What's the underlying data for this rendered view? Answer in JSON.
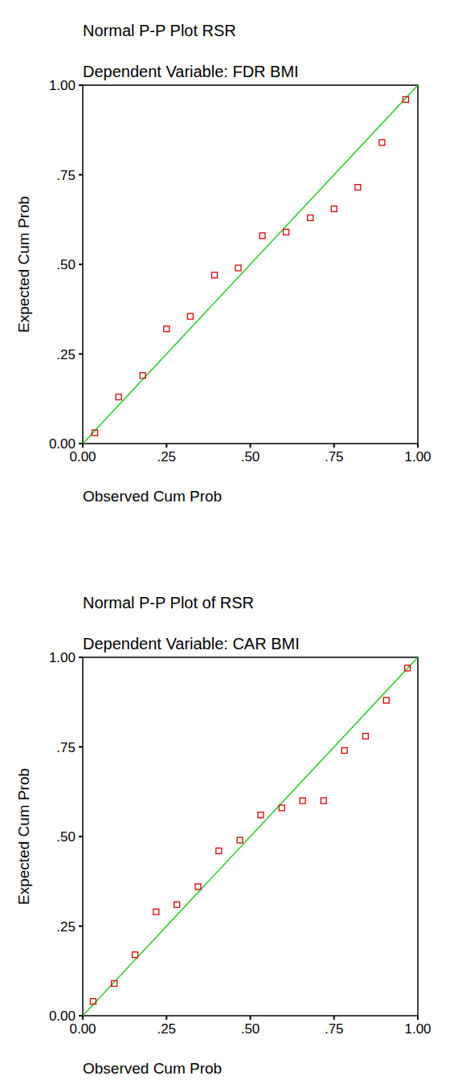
{
  "chart_data": [
    {
      "type": "scatter",
      "title": "Normal P-P Plot RSR",
      "subtitle": "Dependent Variable: FDR BMI",
      "x_label": "Observed Cum Prob",
      "y_label": "Expected Cum Prob",
      "x": [
        0.036,
        0.107,
        0.179,
        0.25,
        0.321,
        0.393,
        0.464,
        0.536,
        0.607,
        0.679,
        0.75,
        0.821,
        0.893,
        0.964
      ],
      "values": [
        0.03,
        0.13,
        0.19,
        0.32,
        0.355,
        0.47,
        0.49,
        0.58,
        0.59,
        0.63,
        0.655,
        0.715,
        0.84,
        0.96
      ],
      "color": "#e00000",
      "marker": "square",
      "xlim": [
        0,
        1
      ],
      "ylim": [
        0,
        1
      ],
      "xticks": [
        {
          "value": 0,
          "label": "0.00"
        },
        {
          "value": 0.25,
          "label": ".25"
        },
        {
          "value": 0.5,
          "label": ".50"
        },
        {
          "value": 0.75,
          "label": ".75"
        },
        {
          "value": 1,
          "label": "1.00"
        }
      ],
      "yticks": [
        {
          "value": 0,
          "label": "0.00"
        },
        {
          "value": 0.25,
          "label": ".25"
        },
        {
          "value": 0.5,
          "label": ".50"
        },
        {
          "value": 0.75,
          "label": ".75"
        },
        {
          "value": 1,
          "label": "1.00"
        }
      ],
      "grid": false
    },
    {
      "type": "scatter",
      "title": "Normal P-P Plot of RSR",
      "subtitle": "Dependent Variable: CAR BMI",
      "x_label": "Observed Cum Prob",
      "y_label": "Expected Cum Prob",
      "x": [
        0.031,
        0.094,
        0.156,
        0.219,
        0.281,
        0.344,
        0.406,
        0.469,
        0.531,
        0.594,
        0.656,
        0.719,
        0.781,
        0.844,
        0.906,
        0.969
      ],
      "values": [
        0.04,
        0.09,
        0.17,
        0.29,
        0.31,
        0.36,
        0.46,
        0.49,
        0.56,
        0.58,
        0.6,
        0.6,
        0.74,
        0.78,
        0.88,
        0.97
      ],
      "color": "#e00000",
      "marker": "square",
      "xlim": [
        0,
        1
      ],
      "ylim": [
        0,
        1
      ],
      "xticks": [
        {
          "value": 0,
          "label": "0.00"
        },
        {
          "value": 0.25,
          "label": ".25"
        },
        {
          "value": 0.5,
          "label": ".50"
        },
        {
          "value": 0.75,
          "label": ".75"
        },
        {
          "value": 1,
          "label": "1.00"
        }
      ],
      "yticks": [
        {
          "value": 0,
          "label": "0.00"
        },
        {
          "value": 0.25,
          "label": ".25"
        },
        {
          "value": 0.5,
          "label": ".50"
        },
        {
          "value": 0.75,
          "label": ".75"
        },
        {
          "value": 1,
          "label": "1.00"
        }
      ],
      "grid": false
    }
  ]
}
